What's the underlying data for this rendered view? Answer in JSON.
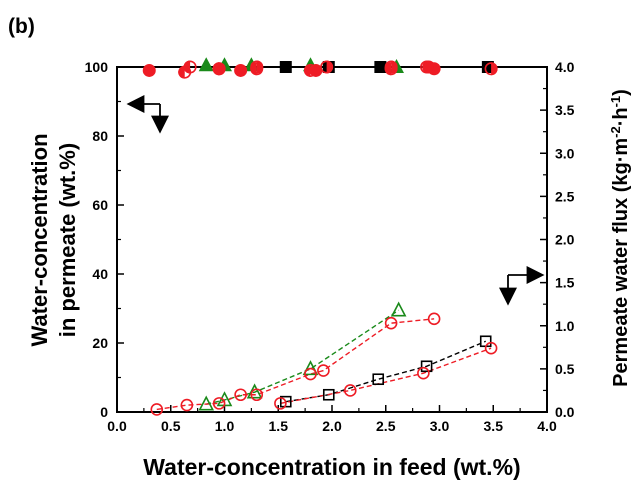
{
  "panel_label": "(b)",
  "chart_data": {
    "type": "scatter",
    "xlabel": "Water-concentration in feed (wt.%)",
    "ylabel_line1": "Water-concentration",
    "ylabel_line2": "in permeate (wt.%)",
    "y2label": "Permeate water flux (kg·m⁻²·h⁻¹)",
    "y2label_main": "Permeate water flux (kg·m",
    "y2label_sup1": "-2",
    "y2label_mid": "·h",
    "y2label_sup2": "-1",
    "y2label_end": ")",
    "xlim": [
      0.0,
      4.0
    ],
    "ylim": [
      0,
      100
    ],
    "y2lim": [
      0.0,
      4.0
    ],
    "xticks": [
      "0.0",
      "0.5",
      "1.0",
      "1.5",
      "2.0",
      "2.5",
      "3.0",
      "3.5",
      "4.0"
    ],
    "yticks": [
      "0",
      "20",
      "40",
      "60",
      "80",
      "100"
    ],
    "y2ticks": [
      "0.0",
      "0.5",
      "1.0",
      "1.5",
      "2.0",
      "2.5",
      "3.0",
      "3.5",
      "4.0"
    ],
    "colors": {
      "red": "#ee1c25",
      "green": "#1a8a1a",
      "black": "#000000"
    },
    "series": [
      {
        "axis": "left",
        "marker": "filled-square",
        "color": "black",
        "x": [
          1.57,
          1.97,
          2.45,
          3.45
        ],
        "y": [
          100,
          100,
          100,
          100
        ]
      },
      {
        "axis": "left",
        "marker": "filled-triangle",
        "color": "green",
        "x": [
          0.83,
          1.0,
          1.25,
          1.8,
          2.6
        ],
        "y": [
          100.5,
          100.5,
          100.5,
          100.5,
          100
        ]
      },
      {
        "axis": "left",
        "marker": "filled-circle",
        "color": "red",
        "x": [
          0.3,
          0.95,
          1.15,
          1.85,
          2.95
        ],
        "y": [
          99,
          99.5,
          99,
          99,
          99.5
        ]
      },
      {
        "axis": "left",
        "marker": "half-circle",
        "color": "red",
        "x": [
          0.63,
          0.68,
          0.95,
          1.3,
          1.8,
          2.55,
          2.9
        ],
        "y": [
          98.5,
          100,
          99.5,
          99.5,
          99,
          99.5,
          100
        ]
      },
      {
        "axis": "left",
        "marker": "half-circle-right",
        "color": "red",
        "x": [
          1.3,
          1.95,
          2.55,
          2.88,
          3.48
        ],
        "y": [
          100,
          100,
          100,
          100,
          99.5
        ]
      },
      {
        "axis": "right",
        "marker": "open-square",
        "color": "black",
        "x": [
          1.57,
          1.97,
          2.43,
          2.88,
          3.43
        ],
        "y": [
          0.12,
          0.2,
          0.38,
          0.53,
          0.82
        ]
      },
      {
        "axis": "right",
        "marker": "open-triangle",
        "color": "green",
        "x": [
          0.83,
          1.0,
          1.28,
          1.8,
          2.62
        ],
        "y": [
          0.09,
          0.14,
          0.23,
          0.5,
          1.18
        ]
      },
      {
        "axis": "right",
        "marker": "open-circle",
        "color": "red",
        "x": [
          0.37,
          0.65,
          0.95,
          1.15,
          1.3,
          1.8,
          1.92,
          2.55,
          2.95
        ],
        "y": [
          0.03,
          0.08,
          0.1,
          0.2,
          0.2,
          0.44,
          0.48,
          1.03,
          1.08
        ]
      },
      {
        "axis": "right",
        "marker": "open-circle",
        "color": "red",
        "x": [
          1.52,
          2.17,
          2.85,
          3.48
        ],
        "y": [
          0.1,
          0.25,
          0.45,
          0.74
        ]
      }
    ]
  }
}
